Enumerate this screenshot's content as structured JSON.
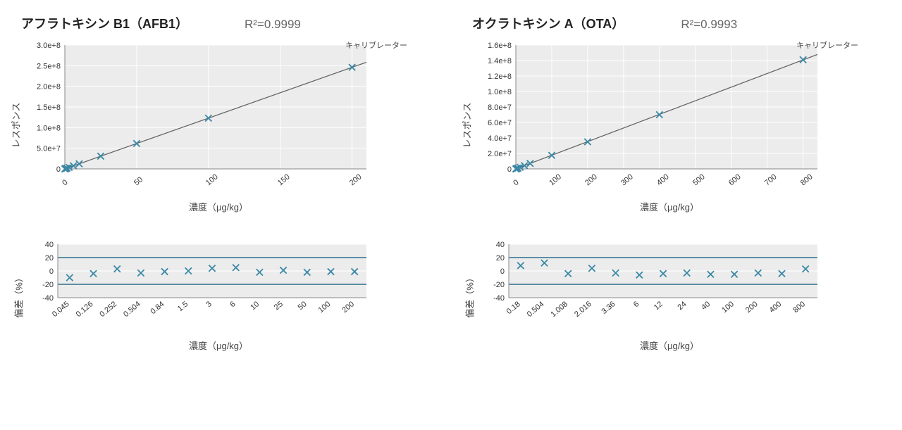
{
  "colors": {
    "background": "#ffffff",
    "plot_bg": "#ececec",
    "series": "#3a88a6",
    "fit_line": "#666666",
    "axis": "#888888",
    "grid_white": "#ffffff",
    "tolerance_line": "#2b6f8c",
    "text": "#333333",
    "title": "#222222",
    "subtitle": "#666666"
  },
  "typography": {
    "title_fontsize": 18,
    "title_weight": 700,
    "r2_fontsize": 17,
    "axis_label_fontsize": 13,
    "tick_fontsize": 11,
    "legend_fontsize": 11
  },
  "marker": {
    "shape": "x",
    "size": 6,
    "stroke_width": 1.8
  },
  "panels": [
    {
      "id": "afb1",
      "title": "アフラトキシン B1（AFB1）",
      "r2_label": "R²=0.9999",
      "calibration": {
        "type": "scatter-line",
        "legend": "キャリブレーター",
        "xlabel": "濃度（μg/kg）",
        "ylabel": "レスポンス",
        "xlim": [
          0,
          210
        ],
        "ylim": [
          0,
          300000000.0
        ],
        "xticks": [
          0,
          50,
          100,
          150,
          200
        ],
        "yticks": [
          0,
          50000000.0,
          100000000.0,
          150000000.0,
          200000000.0,
          250000000.0,
          300000000.0
        ],
        "ytick_labels": [
          "0",
          "5.0e+7",
          "1.0e+8",
          "1.5e+8",
          "2.0e+8",
          "2.5e+8",
          "3.0e+8"
        ],
        "grid": true,
        "points": [
          {
            "x": 0.045,
            "y": 55000.0
          },
          {
            "x": 0.126,
            "y": 150000.0
          },
          {
            "x": 0.252,
            "y": 310000.0
          },
          {
            "x": 0.504,
            "y": 620000.0
          },
          {
            "x": 0.84,
            "y": 1000000.0
          },
          {
            "x": 1.5,
            "y": 1800000.0
          },
          {
            "x": 3,
            "y": 3700000.0
          },
          {
            "x": 6,
            "y": 7400000.0
          },
          {
            "x": 10,
            "y": 12300000.0
          },
          {
            "x": 25,
            "y": 30800000.0
          },
          {
            "x": 50,
            "y": 61500000.0
          },
          {
            "x": 100,
            "y": 123000000.0
          },
          {
            "x": 200,
            "y": 246000000.0
          }
        ],
        "fit": {
          "slope": 1230000.0,
          "intercept": 0
        }
      },
      "residual": {
        "type": "scatter",
        "xlabel": "濃度（μg/kg）",
        "ylabel": "偏差（%）",
        "xscale": "category",
        "ylim": [
          -40,
          40
        ],
        "yticks": [
          -40,
          -20,
          0,
          20,
          40
        ],
        "tolerance_lines": [
          -20,
          20
        ],
        "categories": [
          "0.045",
          "0.126",
          "0.252",
          "0.504",
          "0.84",
          "1.5",
          "3",
          "6",
          "10",
          "25",
          "50",
          "100",
          "200"
        ],
        "values": [
          -10,
          -4,
          3,
          -3,
          -1,
          0,
          4,
          5,
          -2,
          1,
          -2,
          -1,
          -1
        ]
      }
    },
    {
      "id": "ota",
      "title": "オクラトキシン A（OTA）",
      "r2_label": "R²=0.9993",
      "calibration": {
        "type": "scatter-line",
        "legend": "キャリブレーター",
        "xlabel": "濃度（μg/kg）",
        "ylabel": "レスポンス",
        "xlim": [
          0,
          840
        ],
        "ylim": [
          0,
          160000000.0
        ],
        "xticks": [
          0,
          100,
          200,
          300,
          400,
          500,
          600,
          700,
          800
        ],
        "yticks": [
          0,
          20000000.0,
          40000000.0,
          60000000.0,
          80000000.0,
          100000000.0,
          120000000.0,
          140000000.0,
          160000000.0
        ],
        "ytick_labels": [
          "0",
          "2.0e+7",
          "4.0e+7",
          "6.0e+7",
          "8.0e+7",
          "1.0e+8",
          "1.2e+8",
          "1.4e+8",
          "1.6e+8"
        ],
        "grid": true,
        "points": [
          {
            "x": 0.18,
            "y": 32000.0
          },
          {
            "x": 0.504,
            "y": 89000.0
          },
          {
            "x": 1.008,
            "y": 180000.0
          },
          {
            "x": 2.016,
            "y": 360000.0
          },
          {
            "x": 3.36,
            "y": 590000.0
          },
          {
            "x": 6,
            "y": 1050000.0
          },
          {
            "x": 12,
            "y": 2100000.0
          },
          {
            "x": 24,
            "y": 4200000.0
          },
          {
            "x": 40,
            "y": 7000000.0
          },
          {
            "x": 100,
            "y": 17500000.0
          },
          {
            "x": 200,
            "y": 35000000.0
          },
          {
            "x": 400,
            "y": 70000000.0
          },
          {
            "x": 800,
            "y": 141000000.0
          }
        ],
        "fit": {
          "slope": 176000.0,
          "intercept": 0
        }
      },
      "residual": {
        "type": "scatter",
        "xlabel": "濃度（μg/kg）",
        "ylabel": "偏差（%）",
        "xscale": "category",
        "ylim": [
          -40,
          40
        ],
        "yticks": [
          -40,
          -20,
          0,
          20,
          40
        ],
        "tolerance_lines": [
          -20,
          20
        ],
        "categories": [
          "0.18",
          "0.504",
          "1.008",
          "2.016",
          "3.36",
          "6",
          "12",
          "24",
          "40",
          "100",
          "200",
          "400",
          "800"
        ],
        "values": [
          8,
          12,
          -4,
          4,
          -3,
          -6,
          -4,
          -3,
          -5,
          -5,
          -3,
          -4,
          3
        ]
      }
    }
  ]
}
